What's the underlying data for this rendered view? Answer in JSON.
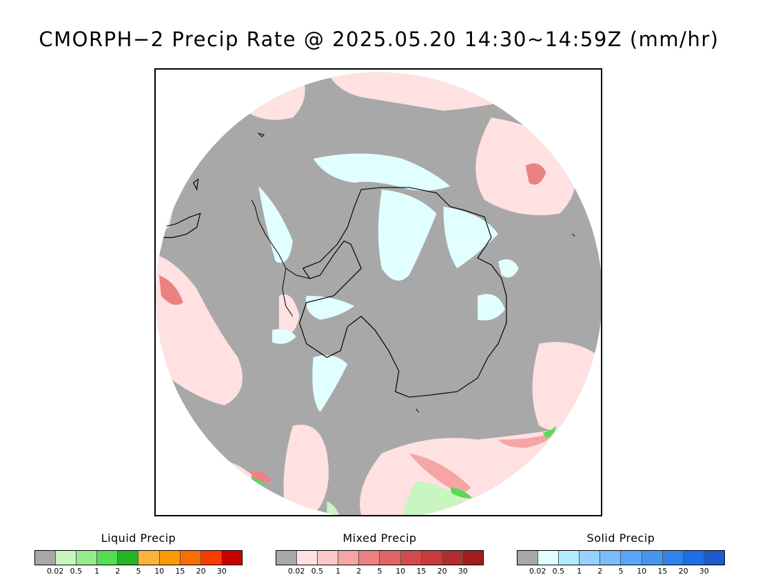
{
  "title": "CMORPH−2 Precip Rate @ 2025.05.20 14:30~14:59Z (mm/hr)",
  "map": {
    "projection": "south-polar-stereographic",
    "background_color": "#a8a8a8",
    "coast_color": "#000000"
  },
  "legends": [
    {
      "title": "Liquid Precip",
      "colors": [
        "#a8a8a8",
        "#c8f5c0",
        "#96eb8c",
        "#55dc55",
        "#23b423",
        "#fab43c",
        "#fa9a00",
        "#fa6e00",
        "#fa3c00",
        "#c80000"
      ],
      "ticks": [
        "0.02",
        "0.5",
        "1",
        "2",
        "5",
        "10",
        "15",
        "20",
        "30"
      ]
    },
    {
      "title": "Mixed Precip",
      "colors": [
        "#a8a8a8",
        "#ffe1e1",
        "#ffc8c8",
        "#f5a5a5",
        "#eb8282",
        "#e16464",
        "#d24b4b",
        "#c83c3c",
        "#b42d2d",
        "#a01e1e"
      ],
      "ticks": [
        "0.02",
        "0.5",
        "1",
        "2",
        "5",
        "10",
        "15",
        "20",
        "30"
      ]
    },
    {
      "title": "Solid Precip",
      "colors": [
        "#a8a8a8",
        "#e1ffff",
        "#b4ebff",
        "#96d2ff",
        "#78befa",
        "#5aa5f5",
        "#4696f0",
        "#3282eb",
        "#1e6ee6",
        "#1e5ad2"
      ],
      "ticks": [
        "0.02",
        "0.5",
        "1",
        "2",
        "5",
        "10",
        "15",
        "20",
        "30"
      ]
    }
  ]
}
